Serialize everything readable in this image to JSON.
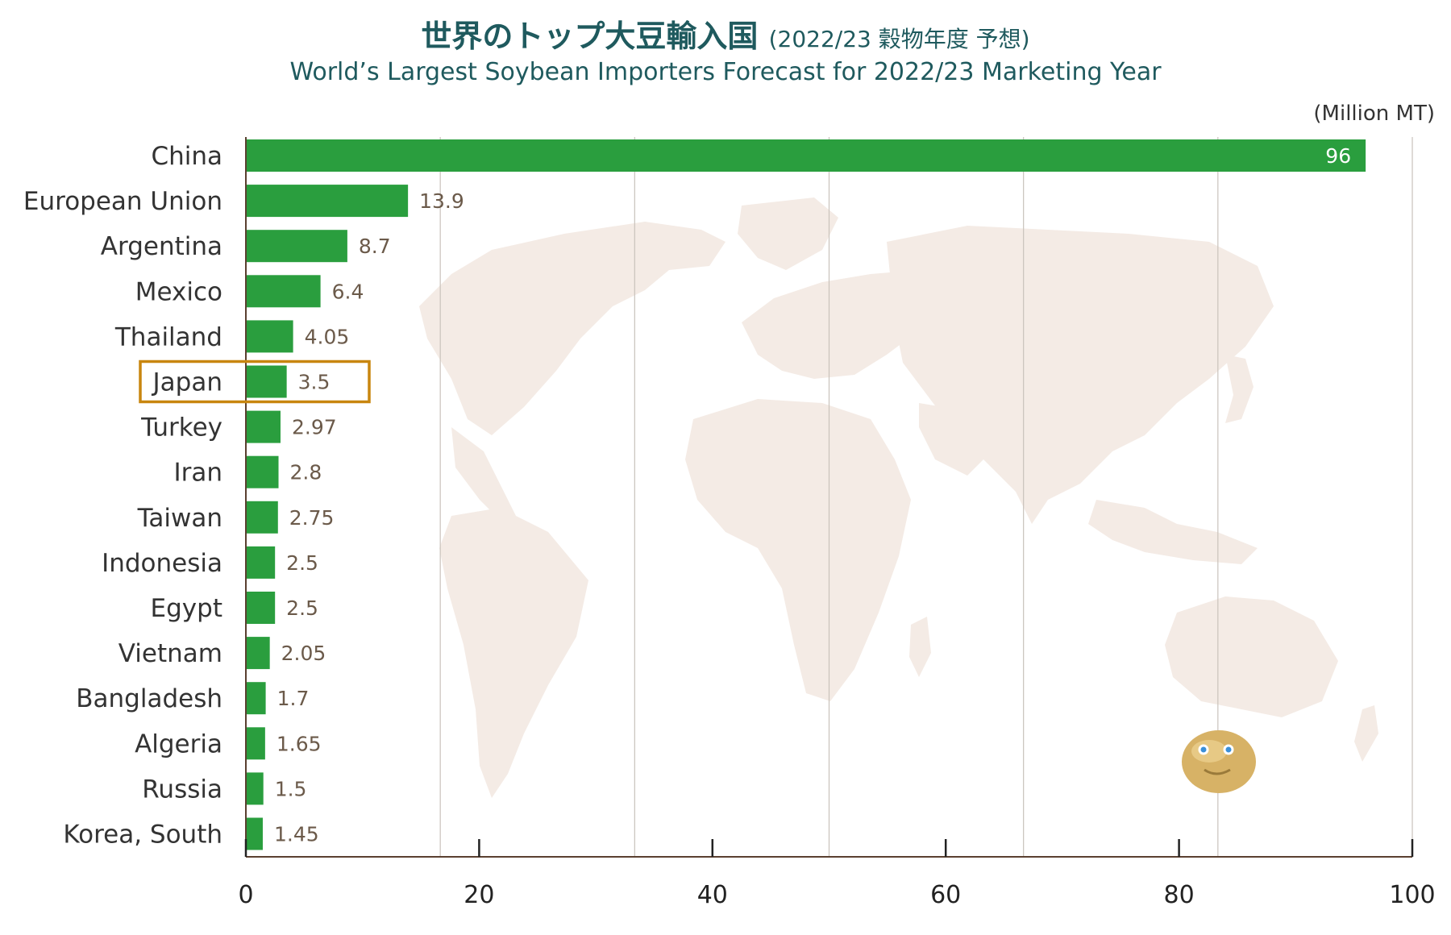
{
  "header": {
    "title_ja": "世界のトップ大豆輸入国",
    "title_ja_sub": "(2022/23 穀物年度 予想)",
    "title_en": "World’s Largest Soybean Importers  Forecast for 2022/23 Marketing Year"
  },
  "colors": {
    "bar": "#2a9e3e",
    "highlight_box": "#c8860f",
    "map": "#f4ebe5",
    "grid": "#c9c2bb",
    "title": "#1f5a5e"
  },
  "chart_data": {
    "type": "bar",
    "orientation": "horizontal",
    "unit": "(Million MT)",
    "categories": [
      "China",
      "European Union",
      "Argentina",
      "Mexico",
      "Thailand",
      "Japan",
      "Turkey",
      "Iran",
      "Taiwan",
      "Indonesia",
      "Egypt",
      "Vietnam",
      "Bangladesh",
      "Algeria",
      "Russia",
      "Korea, South"
    ],
    "values": [
      96,
      13.9,
      8.7,
      6.4,
      4.05,
      3.5,
      2.97,
      2.8,
      2.75,
      2.5,
      2.5,
      2.05,
      1.7,
      1.65,
      1.5,
      1.45
    ],
    "value_labels": [
      "96",
      "13.9",
      "8.7",
      "6.4",
      "4.05",
      "3.5",
      "2.97",
      "2.8",
      "2.75",
      "2.5",
      "2.5",
      "2.05",
      "1.7",
      "1.65",
      "1.5",
      "1.45"
    ],
    "highlight": "Japan",
    "xlim": [
      0,
      100
    ],
    "xticks": [
      0,
      20,
      40,
      60,
      80,
      100
    ],
    "xtick_labels": [
      "0",
      "20",
      "40",
      "60",
      "80",
      "100"
    ],
    "grid": true
  }
}
